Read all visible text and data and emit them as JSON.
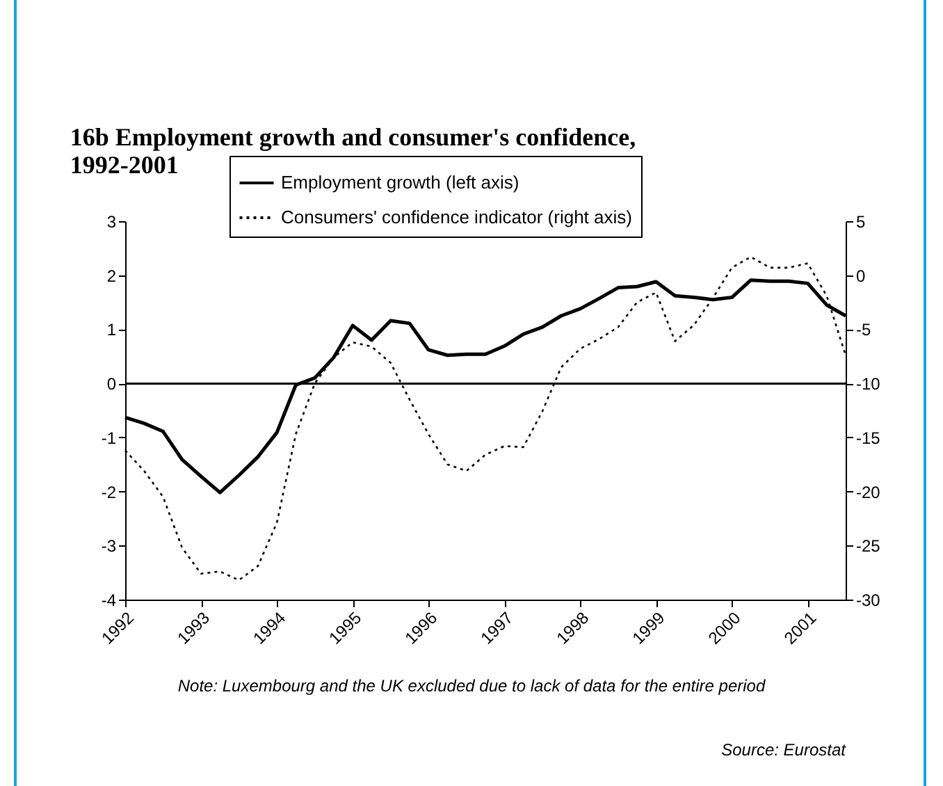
{
  "chart_data": {
    "type": "line",
    "title": "16b   Employment growth and consumer's confidence,\n1992-2001",
    "x": [
      1992,
      1992.25,
      1992.5,
      1992.75,
      1993,
      1993.25,
      1993.5,
      1993.75,
      1994,
      1994.25,
      1994.5,
      1994.75,
      1995,
      1995.25,
      1995.5,
      1995.75,
      1996,
      1996.25,
      1996.5,
      1996.75,
      1997,
      1997.25,
      1997.5,
      1997.75,
      1998,
      1998.25,
      1998.5,
      1998.75,
      1999,
      1999.25,
      1999.5,
      1999.75,
      2000,
      2000.25,
      2000.5,
      2000.75,
      2001,
      2001.25,
      2001.5
    ],
    "series": [
      {
        "name": "Employment growth (left axis)",
        "color": "#000000",
        "line_style": "solid",
        "values": [
          -0.63,
          -0.74,
          -0.89,
          -1.41,
          -1.72,
          -2.02,
          -1.7,
          -1.36,
          -0.91,
          -0.03,
          0.1,
          0.48,
          1.07,
          0.8,
          1.16,
          1.11,
          0.62,
          0.52,
          0.54,
          0.54,
          0.69,
          0.91,
          1.04,
          1.25,
          1.38,
          1.57,
          1.77,
          1.79,
          1.88,
          1.62,
          1.59,
          1.55,
          1.59,
          1.91,
          1.89,
          1.89,
          1.85,
          1.45,
          1.25
        ]
      },
      {
        "name": "Consumers' confidence indicator (right axis)",
        "color": "#000000",
        "line_style": "dotted",
        "axis": "y2",
        "values": [
          -16.2,
          -18.1,
          -20.5,
          -25.2,
          -27.6,
          -27.4,
          -28.2,
          -26.9,
          -22.9,
          -14.7,
          -10,
          -7.6,
          -6.2,
          -6.6,
          -8.1,
          -11.5,
          -14.7,
          -17.5,
          -18.1,
          -16.6,
          -15.8,
          -15.9,
          -12.6,
          -8.5,
          -6.8,
          -5.9,
          -4.8,
          -2.5,
          -1.6,
          -6.1,
          -4.6,
          -2.1,
          0.7,
          1.7,
          0.7,
          0.7,
          1.1,
          -1.9,
          -7.4
        ]
      }
    ],
    "xlim": [
      1992,
      2001.5
    ],
    "xticks": [
      1992,
      1993,
      1994,
      1995,
      1996,
      1997,
      1998,
      1999,
      2000,
      2001
    ],
    "ylim": [
      -4,
      3
    ],
    "yticks": [
      -4,
      -3,
      -2,
      -1,
      0,
      1,
      2,
      3
    ],
    "y2lim": [
      -30,
      5
    ],
    "y2ticks": [
      -30,
      -25,
      -20,
      -15,
      -10,
      -5,
      0,
      5
    ],
    "ref_lines": [
      {
        "axis": "y",
        "value": 0,
        "color": "#000000"
      }
    ],
    "grid": false,
    "legend": "top",
    "annotations": [
      "Note: Luxembourg and the UK excluded due to lack of data for the entire period",
      "Source: Eurostat"
    ]
  }
}
